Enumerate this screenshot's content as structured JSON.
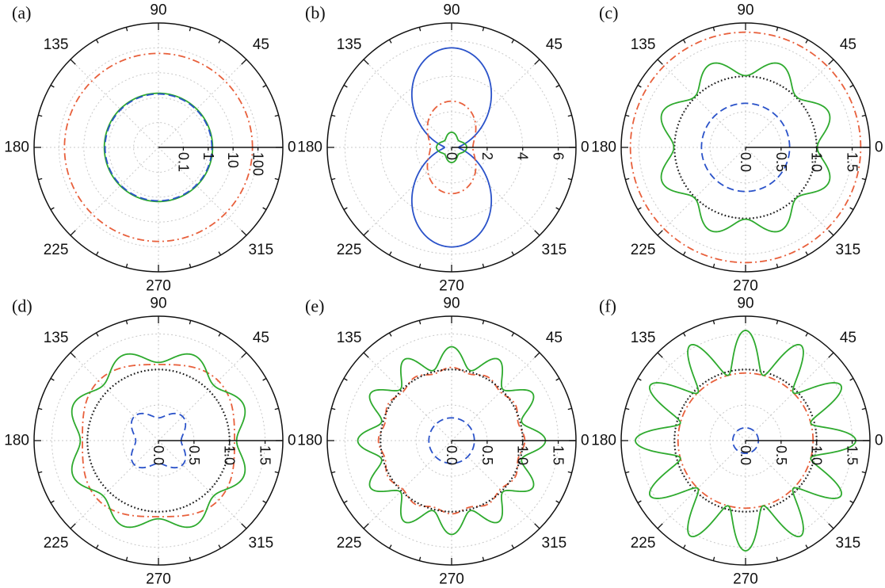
{
  "colors": {
    "green": "#2eaa2e",
    "orange": "#e8603c",
    "blue": "#2a52c9",
    "black": "#111111",
    "grid": "#c8c8c8"
  },
  "angle_labels": [
    "0",
    "45",
    "90",
    "135",
    "180",
    "225",
    "270",
    "315"
  ],
  "chart_data": [
    {
      "type": "polar",
      "panel_label": "(a)",
      "radial_scale": "log",
      "radial_range": [
        0.01,
        1000
      ],
      "radial_ticks": [
        0.1,
        1,
        10,
        100
      ],
      "radial_tick_labels": [
        "0.1",
        "1",
        "10",
        "100"
      ],
      "grid": true,
      "series": [
        {
          "color": "orange",
          "style": "dashdot",
          "r0": 60,
          "amp": 0,
          "n": 0,
          "phase": 0
        },
        {
          "color": "green",
          "style": "solid",
          "r0": 1.5,
          "amp": 0,
          "n": 0,
          "phase": 0
        },
        {
          "color": "blue",
          "style": "dashed",
          "r0": 1.4,
          "amp": 0,
          "n": 0,
          "phase": 0
        }
      ]
    },
    {
      "type": "polar",
      "panel_label": "(b)",
      "radial_scale": "linear",
      "radial_range": [
        0,
        7
      ],
      "radial_ticks": [
        0,
        2,
        4,
        6
      ],
      "radial_tick_labels": [
        "0",
        "2",
        "4",
        "6"
      ],
      "grid": true,
      "series": [
        {
          "color": "blue",
          "style": "dipole",
          "base": 0.4,
          "peak": 5.6,
          "power": 2
        },
        {
          "color": "orange",
          "style": "dipole-dashdot",
          "base": 1.2,
          "peak": 2.6,
          "power": 2
        },
        {
          "color": "green",
          "style": "solid-small",
          "r0": 0.7,
          "amp": 0.15,
          "n": 4,
          "phase": 0
        }
      ]
    },
    {
      "type": "polar",
      "panel_label": "(c)",
      "radial_scale": "linear",
      "radial_range": [
        0,
        1.75
      ],
      "radial_ticks": [
        0,
        0.5,
        1.0,
        1.5
      ],
      "radial_tick_labels": [
        "0.0",
        "0.5",
        "1.0",
        "1.5"
      ],
      "grid": true,
      "series": [
        {
          "color": "orange",
          "style": "dashdot",
          "r0": 1.62,
          "amp": 0,
          "n": 0,
          "phase": 0
        },
        {
          "color": "black",
          "style": "dotted",
          "r0": 1.0,
          "amp": 0,
          "n": 0,
          "phase": 0
        },
        {
          "color": "blue",
          "style": "dashed",
          "r0": 0.62,
          "amp": 0,
          "n": 0,
          "phase": 0
        },
        {
          "color": "green",
          "style": "solid",
          "r0": 1.14,
          "amp": 0.13,
          "n": 8,
          "phase": 22.5
        }
      ]
    },
    {
      "type": "polar",
      "panel_label": "(d)",
      "radial_scale": "linear",
      "radial_range": [
        0,
        1.75
      ],
      "radial_ticks": [
        0,
        0.5,
        1.0,
        1.5
      ],
      "radial_tick_labels": [
        "0.0",
        "0.5",
        "1.0",
        "1.5"
      ],
      "grid": true,
      "series": [
        {
          "color": "orange",
          "style": "dashdot",
          "r0": 1.13,
          "amp": 0.06,
          "n": 4,
          "phase": 45
        },
        {
          "color": "black",
          "style": "dotted",
          "r0": 1.0,
          "amp": 0,
          "n": 0,
          "phase": 0
        },
        {
          "color": "blue",
          "style": "dashed",
          "r0": 0.4,
          "amp": 0.08,
          "n": 4,
          "phase": 45
        },
        {
          "color": "green",
          "style": "solid",
          "r0": 1.2,
          "amp": 0.1,
          "n": 8,
          "phase": 22.5
        }
      ]
    },
    {
      "type": "polar",
      "panel_label": "(e)",
      "radial_scale": "linear",
      "radial_range": [
        0,
        1.75
      ],
      "radial_ticks": [
        0,
        0.5,
        1.0,
        1.5
      ],
      "radial_tick_labels": [
        "0.0",
        "0.5",
        "1.0",
        "1.5"
      ],
      "grid": true,
      "series": [
        {
          "color": "orange",
          "style": "dashdot",
          "r0": 1.0,
          "amp": 0.03,
          "n": 12,
          "phase": 0
        },
        {
          "color": "black",
          "style": "dotted",
          "r0": 1.0,
          "amp": 0,
          "n": 0,
          "phase": 0
        },
        {
          "color": "blue",
          "style": "dashed",
          "r0": 0.32,
          "amp": 0,
          "n": 0,
          "phase": 0
        },
        {
          "color": "green",
          "style": "solid",
          "r0": 1.17,
          "amp": 0.15,
          "n": 12,
          "phase": 0
        }
      ]
    },
    {
      "type": "polar",
      "panel_label": "(f)",
      "radial_scale": "linear",
      "radial_range": [
        0,
        1.75
      ],
      "radial_ticks": [
        0,
        0.5,
        1.0,
        1.5
      ],
      "radial_tick_labels": [
        "0.0",
        "0.5",
        "1.0",
        "1.5"
      ],
      "grid": true,
      "series": [
        {
          "color": "orange",
          "style": "dashdot",
          "r0": 0.95,
          "amp": 0,
          "n": 0,
          "phase": 0
        },
        {
          "color": "black",
          "style": "dotted",
          "r0": 1.0,
          "amp": 0,
          "n": 0,
          "phase": 0
        },
        {
          "color": "blue",
          "style": "dashed",
          "r0": 0.18,
          "amp": 0,
          "n": 0,
          "phase": 0
        },
        {
          "color": "green",
          "style": "solid",
          "r0": 1.25,
          "amp": 0.3,
          "n": 12,
          "phase": 0
        }
      ]
    }
  ]
}
